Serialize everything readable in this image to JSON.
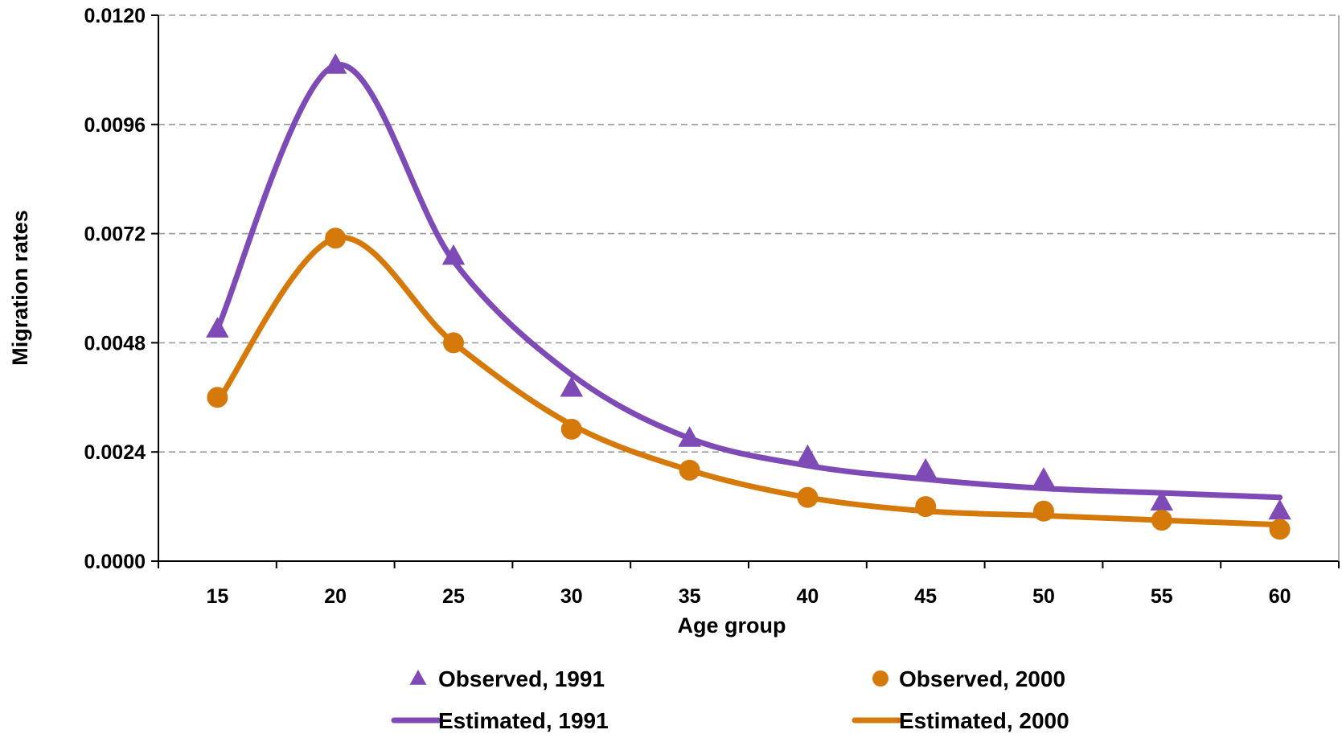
{
  "chart_data": {
    "type": "line",
    "title": "",
    "xlabel": "Age group",
    "ylabel": "Migration rates",
    "categories": [
      "15",
      "20",
      "25",
      "30",
      "35",
      "40",
      "45",
      "50",
      "55",
      "60"
    ],
    "y_ticks": [
      "0.0000",
      "0.0024",
      "0.0048",
      "0.0072",
      "0.0096",
      "0.0120"
    ],
    "ylim": [
      0,
      0.012
    ],
    "grid": "horizontal dashed",
    "legend_position": "bottom",
    "series": [
      {
        "name": "Observed, 1991",
        "kind": "markers",
        "marker": "triangle",
        "color": "#7E4BB6",
        "values": [
          0.0051,
          0.0109,
          0.0067,
          0.0038,
          0.0027,
          0.0023,
          0.002,
          0.0018,
          0.0013,
          0.0011
        ]
      },
      {
        "name": "Observed, 2000",
        "kind": "markers",
        "marker": "circle",
        "color": "#D6790B",
        "values": [
          0.0036,
          0.0071,
          0.0048,
          0.0029,
          0.002,
          0.0014,
          0.0012,
          0.0011,
          0.0009,
          0.0007
        ]
      },
      {
        "name": "Estimated, 1991",
        "kind": "line",
        "color": "#7E4BB6",
        "values": [
          0.0051,
          0.0109,
          0.0066,
          0.0041,
          0.0027,
          0.0021,
          0.0018,
          0.0016,
          0.0015,
          0.0014
        ]
      },
      {
        "name": "Estimated, 2000",
        "kind": "line",
        "color": "#D6790B",
        "values": [
          0.0035,
          0.0071,
          0.0048,
          0.003,
          0.002,
          0.0014,
          0.0011,
          0.001,
          0.0009,
          0.0008
        ]
      }
    ]
  }
}
